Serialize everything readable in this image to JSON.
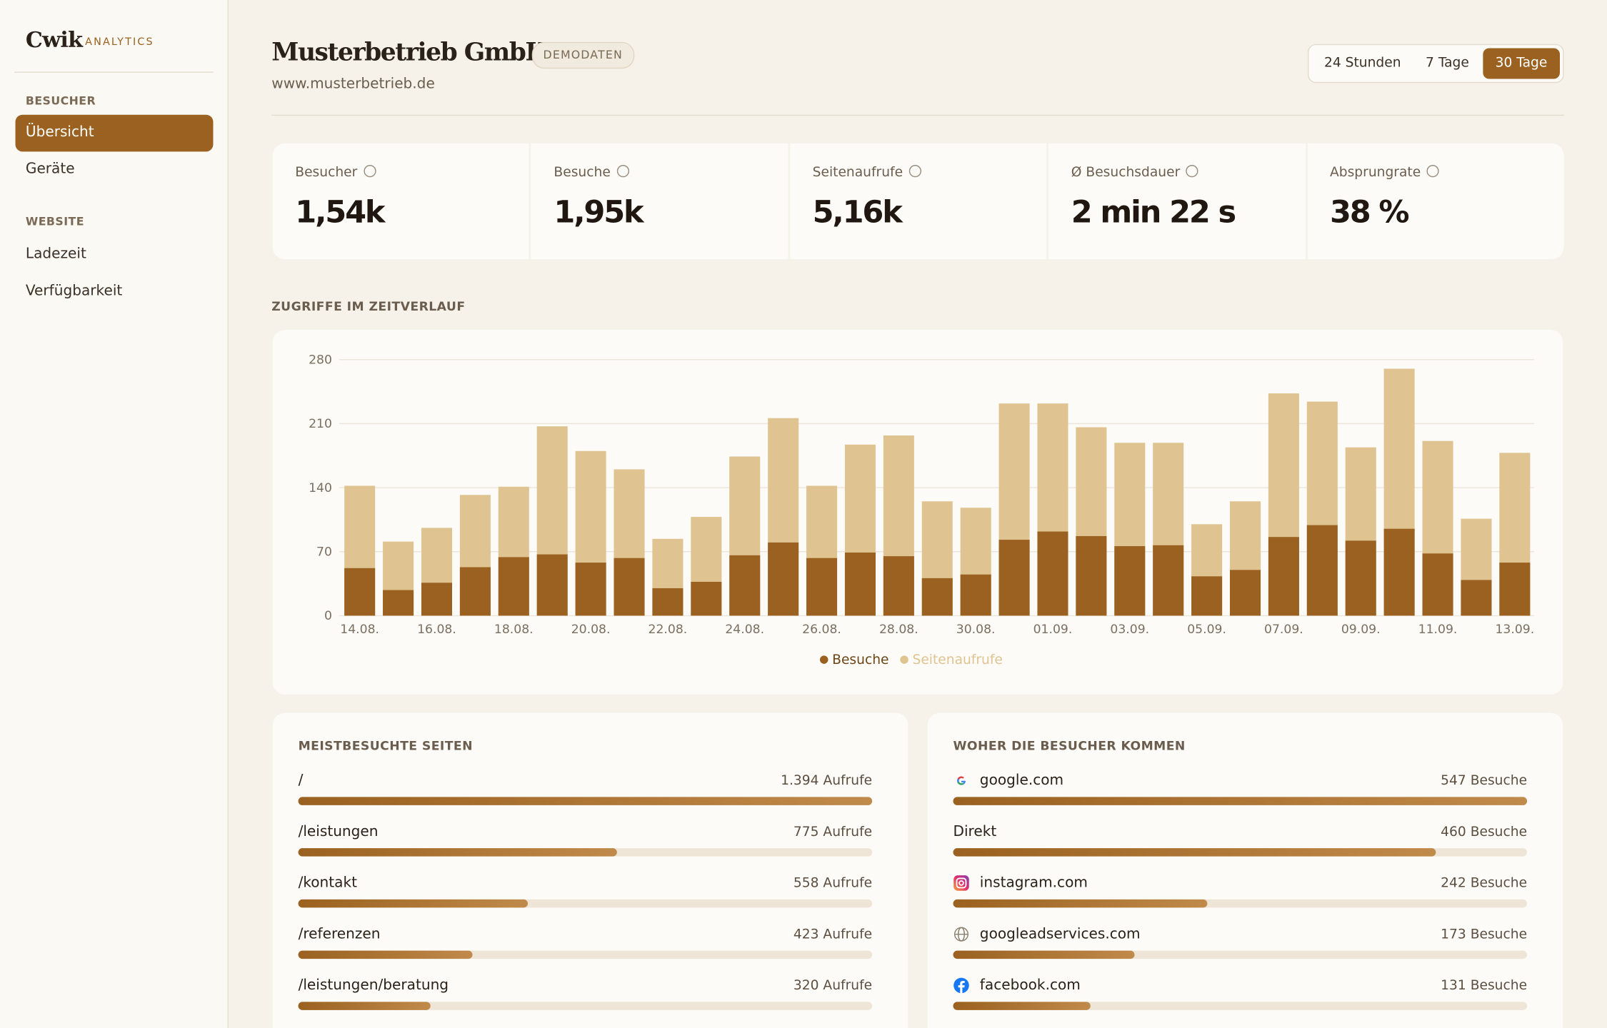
{
  "sidebar": {
    "brand": "Cwik",
    "brand_sub": "ANALYTICS",
    "sections": [
      {
        "title": "BESUCHER",
        "items": [
          "Übersicht",
          "Geräte"
        ]
      },
      {
        "title": "WEBSITE",
        "items": [
          "Ladezeit",
          "Verfügbarkeit"
        ]
      }
    ]
  },
  "header": {
    "title": "Musterbetrieb GmbH",
    "badge": "DEMODATEN",
    "url": "www.musterbetrieb.de",
    "ranges": [
      "24 Stunden",
      "7 Tage",
      "30 Tage"
    ]
  },
  "kpis": [
    {
      "label": "Besucher",
      "value": "1,54k"
    },
    {
      "label": "Besuche",
      "value": "1,95k"
    },
    {
      "label": "Seitenaufrufe",
      "value": "5,16k"
    },
    {
      "label": "Ø Besuchsdauer",
      "value": "2 min 22 s"
    },
    {
      "label": "Absprungrate",
      "value": "38 %"
    }
  ],
  "chart_data": {
    "type": "bar",
    "title": "ZUGRIFFE IM ZEITVERLAUF",
    "categories": [
      "14.08.",
      null,
      "16.08.",
      null,
      "18.08.",
      null,
      "20.08.",
      null,
      "22.08.",
      null,
      "24.08.",
      null,
      "26.08.",
      null,
      "28.08.",
      null,
      "30.08.",
      null,
      "01.09.",
      null,
      "03.09.",
      null,
      "05.09.",
      null,
      "07.09.",
      null,
      "09.09.",
      null,
      "11.09.",
      null,
      "13.09."
    ],
    "series": [
      {
        "name": "Besuche",
        "color": "#9a6120",
        "values": [
          52,
          28,
          36,
          53,
          64,
          67,
          58,
          63,
          30,
          37,
          66,
          80,
          63,
          69,
          65,
          41,
          45,
          83,
          92,
          87,
          76,
          77,
          43,
          50,
          86,
          99,
          82,
          95,
          68,
          39,
          58
        ]
      },
      {
        "name": "Seitenaufrufe",
        "color": "#dfc491",
        "values": [
          142,
          81,
          96,
          132,
          141,
          207,
          180,
          160,
          84,
          108,
          174,
          216,
          142,
          187,
          197,
          125,
          118,
          232,
          232,
          206,
          189,
          189,
          100,
          125,
          243,
          234,
          184,
          270,
          191,
          106,
          178
        ]
      }
    ],
    "ylim": [
      0,
      280
    ],
    "yticks": [
      0,
      70,
      140,
      210,
      280
    ],
    "grid": true
  },
  "top_pages": {
    "title": "MEISTBESUCHTE SEITEN",
    "items": [
      {
        "label": "/",
        "value": 1394,
        "value_label": "1.394 Aufrufe"
      },
      {
        "label": "/leistungen",
        "value": 775,
        "value_label": "775 Aufrufe"
      },
      {
        "label": "/kontakt",
        "value": 558,
        "value_label": "558 Aufrufe"
      },
      {
        "label": "/referenzen",
        "value": 423,
        "value_label": "423 Aufrufe"
      },
      {
        "label": "/leistungen/beratung",
        "value": 320,
        "value_label": "320 Aufrufe"
      }
    ]
  },
  "referrers": {
    "title": "WOHER DIE BESUCHER KOMMEN",
    "items": [
      {
        "label": "google.com",
        "value": 547,
        "value_label": "547 Besuche"
      },
      {
        "label": "Direkt",
        "value": 460,
        "value_label": "460 Besuche"
      },
      {
        "label": "instagram.com",
        "value": 242,
        "value_label": "242 Besuche"
      },
      {
        "label": "googleadservices.com",
        "value": 173,
        "value_label": "173 Besuche"
      },
      {
        "label": "facebook.com",
        "value": 131,
        "value_label": "131 Besuche"
      }
    ]
  }
}
